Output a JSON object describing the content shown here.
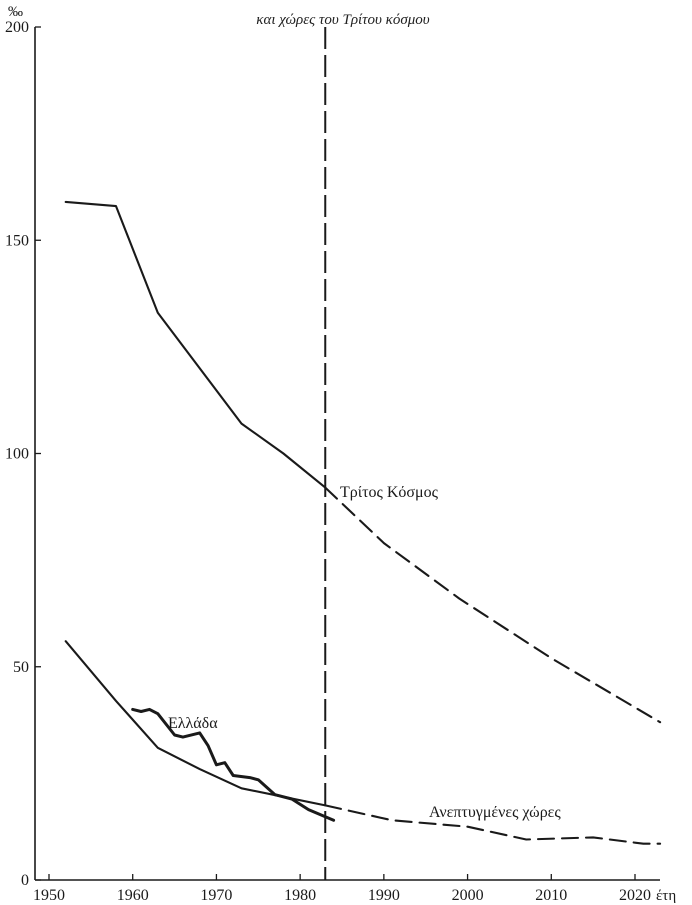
{
  "chart_data": {
    "type": "line",
    "subtitle": "και χώρες του Τρίτου κόσμου",
    "ylabel": "‰",
    "xlabel": "έτη",
    "xlim": [
      1950,
      2024
    ],
    "ylim": [
      0,
      200
    ],
    "x_ticks": [
      1950,
      1960,
      1970,
      1980,
      1990,
      2000,
      2010,
      2020
    ],
    "y_ticks": [
      0,
      50,
      100,
      150,
      200
    ],
    "projection_start_year": 1983,
    "series": [
      {
        "name": "Τρίτος Κόσμος",
        "observed": [
          [
            1952,
            159
          ],
          [
            1958,
            158
          ],
          [
            1963,
            133
          ],
          [
            1973,
            107
          ],
          [
            1978,
            100
          ],
          [
            1983,
            92
          ]
        ],
        "projected": [
          [
            1983,
            92
          ],
          [
            1990,
            79
          ],
          [
            1999,
            66
          ],
          [
            2010,
            52
          ],
          [
            2023,
            37
          ]
        ]
      },
      {
        "name": "Ανεπτυγμένες χώρες",
        "observed": [
          [
            1952,
            56
          ],
          [
            1958,
            42
          ],
          [
            1963,
            31
          ],
          [
            1968,
            26
          ],
          [
            1973,
            21.5
          ],
          [
            1978,
            19.5
          ],
          [
            1983,
            17.5
          ]
        ],
        "projected": [
          [
            1983,
            17.5
          ],
          [
            1991,
            14
          ],
          [
            2000,
            12.5
          ],
          [
            2007,
            9.5
          ],
          [
            2015,
            10
          ],
          [
            2021,
            8.5
          ],
          [
            2023,
            8.5
          ]
        ]
      },
      {
        "name": "Ελλάδα",
        "observed": [
          [
            1960,
            40
          ],
          [
            1961,
            39.5
          ],
          [
            1962,
            40
          ],
          [
            1963,
            39
          ],
          [
            1965,
            34
          ],
          [
            1966,
            33.5
          ],
          [
            1968,
            34.5
          ],
          [
            1969,
            31.5
          ],
          [
            1970,
            27
          ],
          [
            1971,
            27.5
          ],
          [
            1972,
            24.5
          ],
          [
            1974,
            24
          ],
          [
            1975,
            23.5
          ],
          [
            1977,
            20
          ],
          [
            1979,
            19
          ],
          [
            1981,
            16.5
          ],
          [
            1984,
            14
          ]
        ],
        "projected": []
      }
    ]
  }
}
